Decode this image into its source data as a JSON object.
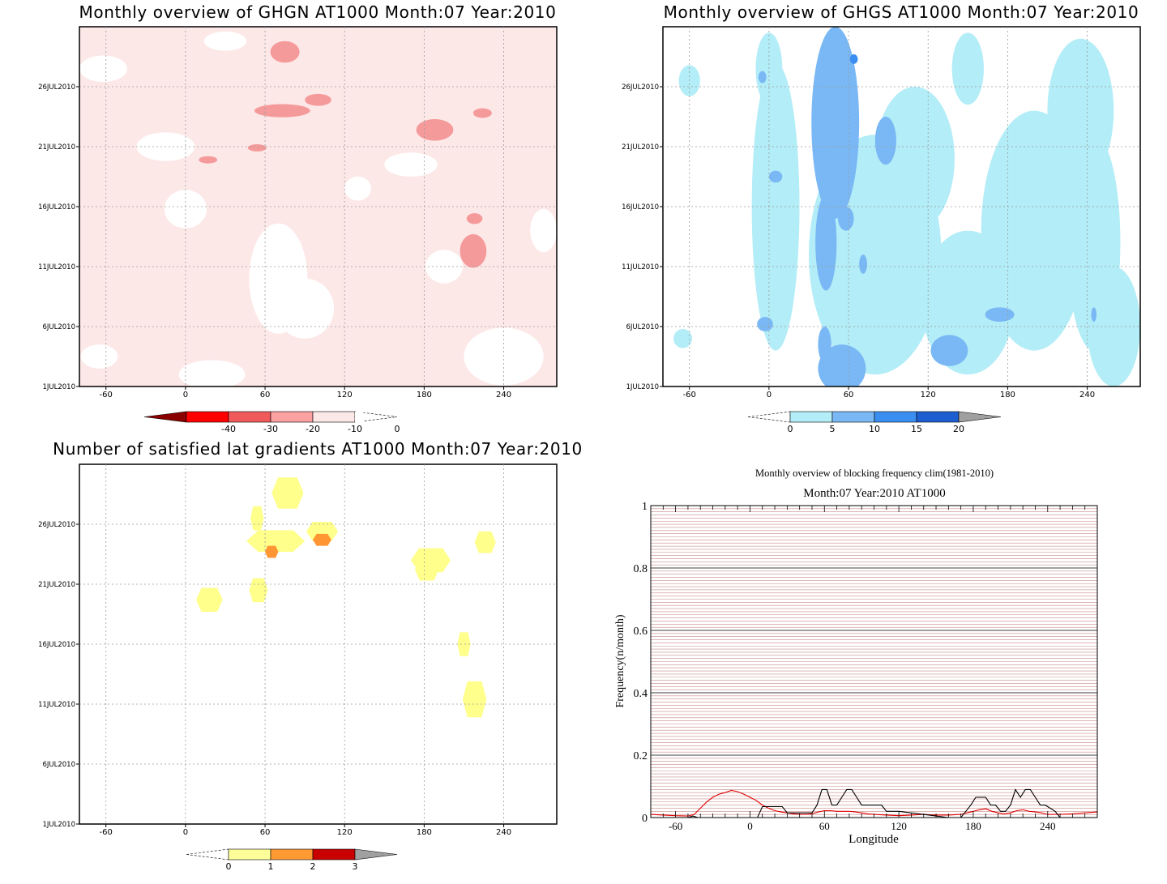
{
  "chart_data": [
    {
      "type": "heatmap",
      "title": "Monthly overview of GHGN AT1000 Month:07 Year:2010",
      "x_ticks": [
        "-60",
        "0",
        "60",
        "120",
        "180",
        "240"
      ],
      "x_tick_values": [
        -60,
        0,
        60,
        120,
        180,
        240
      ],
      "xlim": [
        -80,
        280
      ],
      "y_ticks": [
        "1JUL2010",
        "6JUL2010",
        "11JUL2010",
        "16JUL2010",
        "21JUL2010",
        "26JUL2010"
      ],
      "y_tick_values": [
        1,
        6,
        11,
        16,
        21,
        26
      ],
      "ylim": [
        1,
        31
      ],
      "background_level_color": "#fde8e8",
      "colorbar": {
        "labels": [
          "-40",
          "-30",
          "-20",
          "-10",
          "0"
        ],
        "colors": [
          "#8a0000",
          "#ff0000",
          "#f05a5a",
          "#fca0a0",
          "#fde8e8"
        ],
        "extends": "both"
      },
      "blobs": [
        {
          "level": -20,
          "color": "#f59a9a",
          "lon": 75,
          "day": 28.9,
          "rx": 11,
          "ry": 0.9
        },
        {
          "level": -20,
          "color": "#f59a9a",
          "lon": 73,
          "day": 24.0,
          "rx": 21,
          "ry": 0.55
        },
        {
          "level": -20,
          "color": "#f59a9a",
          "lon": 100,
          "day": 24.9,
          "rx": 10,
          "ry": 0.5
        },
        {
          "level": -20,
          "color": "#f59a9a",
          "lon": 188,
          "day": 22.4,
          "rx": 14,
          "ry": 0.9
        },
        {
          "level": -20,
          "color": "#f59a9a",
          "lon": 224,
          "day": 23.8,
          "rx": 7,
          "ry": 0.4
        },
        {
          "level": -20,
          "color": "#f59a9a",
          "lon": 217,
          "day": 12.3,
          "rx": 10,
          "ry": 1.4
        },
        {
          "level": -20,
          "color": "#f59a9a",
          "lon": 218,
          "day": 15.0,
          "rx": 6,
          "ry": 0.45
        },
        {
          "level": -20,
          "color": "#f59a9a",
          "lon": 17,
          "day": 19.9,
          "rx": 7,
          "ry": 0.3
        },
        {
          "level": -20,
          "color": "#f59a9a",
          "lon": 54,
          "day": 20.9,
          "rx": 7,
          "ry": 0.3
        }
      ],
      "zero_areas": [
        {
          "lon": 30,
          "day": 29.8,
          "rx": 16,
          "ry": 0.8
        },
        {
          "lon": -62,
          "day": 27.5,
          "rx": 18,
          "ry": 1.1
        },
        {
          "lon": -15,
          "day": 21.0,
          "rx": 22,
          "ry": 1.2
        },
        {
          "lon": 170,
          "day": 19.5,
          "rx": 20,
          "ry": 1.0
        },
        {
          "lon": 0,
          "day": 15.8,
          "rx": 16,
          "ry": 1.6
        },
        {
          "lon": 70,
          "day": 10.0,
          "rx": 22,
          "ry": 4.6
        },
        {
          "lon": 90,
          "day": 7.5,
          "rx": 22,
          "ry": 2.5
        },
        {
          "lon": 195,
          "day": 11.0,
          "rx": 14,
          "ry": 1.4
        },
        {
          "lon": 240,
          "day": 3.5,
          "rx": 30,
          "ry": 2.4
        },
        {
          "lon": 20,
          "day": 2.0,
          "rx": 25,
          "ry": 1.2
        },
        {
          "lon": -65,
          "day": 3.5,
          "rx": 14,
          "ry": 1.0
        },
        {
          "lon": 270,
          "day": 14.0,
          "rx": 10,
          "ry": 1.8
        },
        {
          "lon": 130,
          "day": 17.5,
          "rx": 10,
          "ry": 1.0
        }
      ]
    },
    {
      "type": "heatmap",
      "title": "Monthly overview of GHGS AT1000 Month:07 Year:2010",
      "x_ticks": [
        "-60",
        "0",
        "60",
        "120",
        "180",
        "240"
      ],
      "x_tick_values": [
        -60,
        0,
        60,
        120,
        180,
        240
      ],
      "xlim": [
        -80,
        280
      ],
      "y_ticks": [
        "1JUL2010",
        "6JUL2010",
        "11JUL2010",
        "16JUL2010",
        "21JUL2010",
        "26JUL2010"
      ],
      "y_tick_values": [
        1,
        6,
        11,
        16,
        21,
        26
      ],
      "ylim": [
        1,
        31
      ],
      "colorbar": {
        "labels": [
          "0",
          "5",
          "10",
          "15",
          "20"
        ],
        "colors": [
          "#b3edf7",
          "#7ab8f5",
          "#3a8ef0",
          "#1c5ed0",
          "#a0a0a0"
        ],
        "extends": "both"
      },
      "light_areas": [
        {
          "lon": 5,
          "day": 16.0,
          "rx": 18,
          "ry": 12
        },
        {
          "lon": 80,
          "day": 12.0,
          "rx": 50,
          "ry": 10
        },
        {
          "lon": 110,
          "day": 20.0,
          "rx": 30,
          "ry": 6
        },
        {
          "lon": 150,
          "day": 8.0,
          "rx": 35,
          "ry": 6
        },
        {
          "lon": 200,
          "day": 14.0,
          "rx": 40,
          "ry": 10
        },
        {
          "lon": 235,
          "day": 24.0,
          "rx": 25,
          "ry": 6
        },
        {
          "lon": 260,
          "day": 6.0,
          "rx": 20,
          "ry": 5
        },
        {
          "lon": -60,
          "day": 26.5,
          "rx": 8,
          "ry": 1.3
        },
        {
          "lon": -65,
          "day": 5.0,
          "rx": 7,
          "ry": 0.8
        },
        {
          "lon": 0,
          "day": 27.5,
          "rx": 10,
          "ry": 3
        },
        {
          "lon": 150,
          "day": 27.5,
          "rx": 12,
          "ry": 3
        },
        {
          "lon": 245,
          "day": 13.0,
          "rx": 20,
          "ry": 9
        }
      ],
      "dark_blobs": [
        {
          "color": "#7ab8f5",
          "lon": 50,
          "day": 23.0,
          "rx": 18,
          "ry": 8
        },
        {
          "color": "#7ab8f5",
          "lon": 43,
          "day": 13.0,
          "rx": 8,
          "ry": 4
        },
        {
          "color": "#7ab8f5",
          "lon": 55,
          "day": 2.5,
          "rx": 18,
          "ry": 2
        },
        {
          "color": "#7ab8f5",
          "lon": 88,
          "day": 21.5,
          "rx": 8,
          "ry": 2
        },
        {
          "color": "#7ab8f5",
          "lon": 58,
          "day": 15.0,
          "rx": 6,
          "ry": 1
        },
        {
          "color": "#7ab8f5",
          "lon": 136,
          "day": 4.0,
          "rx": 14,
          "ry": 1.3
        },
        {
          "color": "#7ab8f5",
          "lon": 174,
          "day": 7.0,
          "rx": 11,
          "ry": 0.6
        },
        {
          "color": "#7ab8f5",
          "lon": 42,
          "day": 4.5,
          "rx": 5,
          "ry": 1.5
        },
        {
          "color": "#7ab8f5",
          "lon": -3,
          "day": 6.2,
          "rx": 6,
          "ry": 0.6
        },
        {
          "color": "#7ab8f5",
          "lon": 5,
          "day": 18.5,
          "rx": 5,
          "ry": 0.5
        },
        {
          "color": "#7ab8f5",
          "lon": 71,
          "day": 11.2,
          "rx": 3,
          "ry": 0.8
        },
        {
          "color": "#7ab8f5",
          "lon": -5,
          "day": 26.8,
          "rx": 3,
          "ry": 0.5
        },
        {
          "color": "#7ab8f5",
          "lon": 245,
          "day": 7.0,
          "rx": 2,
          "ry": 0.6
        },
        {
          "color": "#3a8ef0",
          "lon": 64,
          "day": 28.3,
          "rx": 3,
          "ry": 0.4
        }
      ]
    },
    {
      "type": "heatmap",
      "title": "Number of satisfied lat gradients AT1000 Month:07 Year:2010",
      "x_ticks": [
        "-60",
        "0",
        "60",
        "120",
        "180",
        "240"
      ],
      "x_tick_values": [
        -60,
        0,
        60,
        120,
        180,
        240
      ],
      "xlim": [
        -80,
        280
      ],
      "y_ticks": [
        "1JUL2010",
        "6JUL2010",
        "11JUL2010",
        "16JUL2010",
        "21JUL2010",
        "26JUL2010"
      ],
      "y_tick_values": [
        1,
        6,
        11,
        16,
        21,
        26
      ],
      "ylim": [
        1,
        31
      ],
      "colorbar": {
        "labels": [
          "0",
          "1",
          "2",
          "3"
        ],
        "colors": [
          "#ffff9a",
          "#ff9a33",
          "#c80000",
          "#a0a0a0"
        ],
        "extends": "both"
      },
      "blobs": [
        {
          "level": 1,
          "color": "#ffff8c",
          "lon": 77,
          "day": 28.6,
          "rx": 12,
          "ry": 1.3
        },
        {
          "level": 1,
          "color": "#ffff8c",
          "lon": 54,
          "day": 26.5,
          "rx": 5,
          "ry": 1.0
        },
        {
          "level": 1,
          "color": "#ffff8c",
          "lon": 68,
          "day": 24.6,
          "rx": 22,
          "ry": 0.9
        },
        {
          "level": 1,
          "color": "#ffff8c",
          "lon": 103,
          "day": 25.4,
          "rx": 12,
          "ry": 0.8
        },
        {
          "level": 1,
          "color": "#ffff8c",
          "lon": 185,
          "day": 23.0,
          "rx": 15,
          "ry": 1.0
        },
        {
          "level": 1,
          "color": "#ffff8c",
          "lon": 182,
          "day": 22.2,
          "rx": 9,
          "ry": 0.9
        },
        {
          "level": 1,
          "color": "#ffff8c",
          "lon": 226,
          "day": 24.5,
          "rx": 8,
          "ry": 0.9
        },
        {
          "level": 1,
          "color": "#ffff8c",
          "lon": 18,
          "day": 19.7,
          "rx": 10,
          "ry": 1.0
        },
        {
          "level": 1,
          "color": "#ffff8c",
          "lon": 55,
          "day": 20.5,
          "rx": 7,
          "ry": 1.0
        },
        {
          "level": 1,
          "color": "#ffff8c",
          "lon": 210,
          "day": 16.0,
          "rx": 5,
          "ry": 1.0
        },
        {
          "level": 1,
          "color": "#ffff8c",
          "lon": 218,
          "day": 11.4,
          "rx": 9,
          "ry": 1.5
        },
        {
          "level": 2,
          "color": "#ff9633",
          "lon": 65,
          "day": 23.7,
          "rx": 5,
          "ry": 0.5
        },
        {
          "level": 2,
          "color": "#ff9633",
          "lon": 103,
          "day": 24.7,
          "rx": 7,
          "ry": 0.5
        }
      ]
    },
    {
      "type": "line",
      "title": "Monthly overview of blocking frequency clim(1981-2010)",
      "subtitle": "Month:07 Year:2010  AT1000",
      "xlabel": "Longitude",
      "ylabel": "Frequency(n/month)",
      "xlim": [
        -80,
        280
      ],
      "ylim": [
        0,
        1
      ],
      "x_ticks": [
        "-60",
        "0",
        "60",
        "120",
        "180",
        "240"
      ],
      "x_tick_values": [
        -60,
        0,
        60,
        120,
        180,
        240
      ],
      "y_ticks": [
        "0",
        "0.2",
        "0.4",
        "0.6",
        "0.8",
        "1"
      ],
      "y_tick_values": [
        0,
        0.2,
        0.4,
        0.6,
        0.8,
        1
      ],
      "grid": true,
      "series": [
        {
          "color": "#e00000",
          "x": [
            -80,
            -70,
            -60,
            -50,
            -45,
            -40,
            -35,
            -30,
            -25,
            -20,
            -15,
            -10,
            -5,
            0,
            5,
            10,
            15,
            20,
            25,
            30,
            35,
            40,
            45,
            50,
            55,
            60,
            65,
            70,
            75,
            80,
            85,
            90,
            95,
            100,
            110,
            120,
            130,
            140,
            150,
            160,
            170,
            175,
            180,
            185,
            190,
            195,
            200,
            205,
            210,
            215,
            220,
            225,
            230,
            235,
            240,
            250,
            260,
            270,
            280
          ],
          "y": [
            0.01,
            0.008,
            0.006,
            0.005,
            0.01,
            0.03,
            0.05,
            0.065,
            0.075,
            0.08,
            0.087,
            0.083,
            0.075,
            0.065,
            0.055,
            0.04,
            0.03,
            0.022,
            0.018,
            0.015,
            0.012,
            0.01,
            0.01,
            0.012,
            0.018,
            0.022,
            0.022,
            0.02,
            0.02,
            0.02,
            0.018,
            0.015,
            0.012,
            0.01,
            0.008,
            0.006,
            0.008,
            0.01,
            0.008,
            0.008,
            0.01,
            0.015,
            0.02,
            0.025,
            0.028,
            0.02,
            0.015,
            0.012,
            0.015,
            0.022,
            0.025,
            0.02,
            0.018,
            0.015,
            0.01,
            0.01,
            0.012,
            0.015,
            0.018
          ]
        },
        {
          "color": "#000000",
          "x": [
            -80,
            -50,
            -46,
            -42,
            -30,
            0,
            6,
            10,
            26,
            30,
            40,
            46,
            50,
            54,
            58,
            62,
            66,
            70,
            74,
            78,
            82,
            86,
            90,
            94,
            100,
            106,
            110,
            120,
            160,
            170,
            174,
            178,
            182,
            186,
            190,
            194,
            198,
            202,
            206,
            210,
            214,
            218,
            222,
            226,
            230,
            234,
            238,
            246,
            250,
            280
          ],
          "y": [
            0,
            0,
            0.005,
            0,
            0,
            0,
            0,
            0.035,
            0.035,
            0.015,
            0.015,
            0.015,
            0.015,
            0.04,
            0.09,
            0.09,
            0.04,
            0.04,
            0.065,
            0.09,
            0.09,
            0.065,
            0.04,
            0.04,
            0.04,
            0.04,
            0.02,
            0.02,
            0,
            0,
            0.02,
            0.04,
            0.065,
            0.065,
            0.065,
            0.04,
            0.04,
            0.02,
            0.02,
            0.04,
            0.09,
            0.065,
            0.09,
            0.09,
            0.065,
            0.04,
            0.04,
            0.02,
            0,
            0
          ]
        }
      ]
    }
  ]
}
